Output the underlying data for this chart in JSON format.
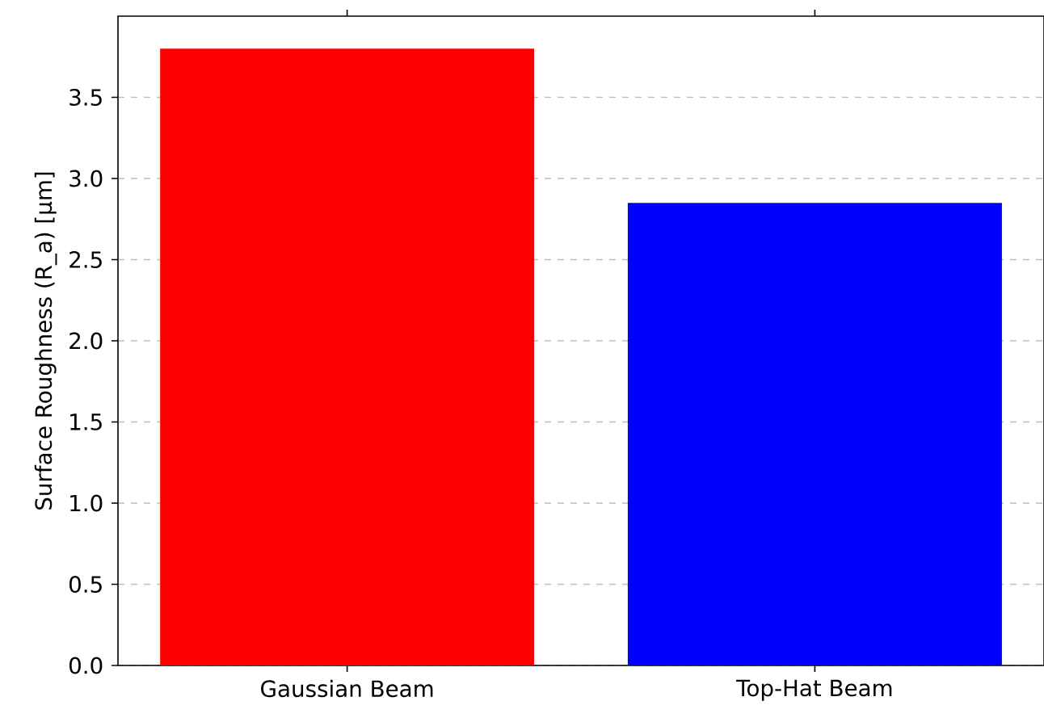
{
  "chart_data": {
    "type": "bar",
    "ylabel": "Surface Roughness (R_a) [µm]",
    "categories": [
      "Gaussian Beam",
      "Top-Hat Beam"
    ],
    "values": [
      3.8,
      2.85
    ],
    "colors": [
      "#ff0000",
      "#0000ff"
    ],
    "ylim": [
      0,
      4.0
    ],
    "yticks": [
      {
        "value": 0,
        "label": "0.0"
      },
      {
        "value": 0.5,
        "label": "0.5"
      },
      {
        "value": 1,
        "label": "1.0"
      },
      {
        "value": 1.5,
        "label": "1.5"
      },
      {
        "value": 2,
        "label": "2.0"
      },
      {
        "value": 2.5,
        "label": "2.5"
      },
      {
        "value": 3,
        "label": "3.0"
      },
      {
        "value": 3.5,
        "label": "3.5"
      }
    ],
    "grid": "y"
  }
}
